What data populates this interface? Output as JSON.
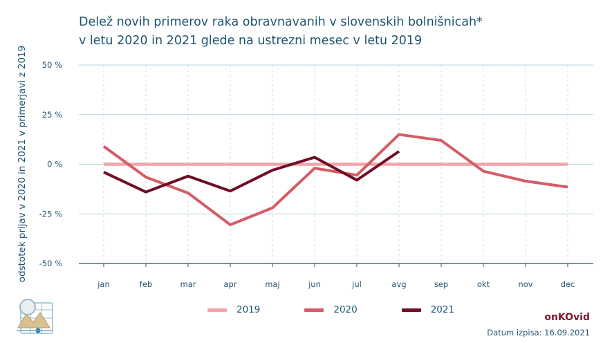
{
  "title_line1": "Delež novih primerov raka obravnavanih v slovenskih bolnišnicah*",
  "title_line2": "v letu 2020 in 2021 glede na ustrezni mesec v letu 2019",
  "brand": "onKOvid",
  "date": "Datum izpisa: 16.09.2021",
  "chart_data": {
    "type": "line",
    "title": "Delež novih primerov raka obravnavanih v slovenskih bolnišnicah* v letu 2020 in 2021 glede na ustrezni mesec v letu 2019",
    "ylabel": "odstotek prijav v 2020 in 2021 v primerjavi z 2019",
    "xlabel": "",
    "ylim": [
      -50,
      50
    ],
    "yticks": [
      50,
      25,
      0,
      -25,
      -50
    ],
    "ytick_labels": [
      "50 %",
      "25 %",
      "0 %",
      "-25 %",
      "-50 %"
    ],
    "categories": [
      "jan",
      "feb",
      "mar",
      "apr",
      "maj",
      "jun",
      "jul",
      "avg",
      "sep",
      "okt",
      "nov",
      "dec"
    ],
    "grid": true,
    "legend_position": "bottom",
    "series": [
      {
        "name": "2019",
        "color": "#f4a3aa",
        "values": [
          0,
          0,
          0,
          0,
          0,
          0,
          0,
          0,
          0,
          0,
          0,
          0
        ]
      },
      {
        "name": "2020",
        "color": "#d45c65",
        "values": [
          9,
          -6.5,
          -14.5,
          -30.5,
          -22,
          -2,
          -5.5,
          15,
          12,
          -3.5,
          -8.5,
          -11.5
        ]
      },
      {
        "name": "2021",
        "color": "#700d26",
        "values": [
          -4,
          -14,
          -6,
          -13.5,
          -3,
          3.5,
          -8,
          6.5,
          null,
          null,
          null,
          null
        ]
      }
    ]
  }
}
